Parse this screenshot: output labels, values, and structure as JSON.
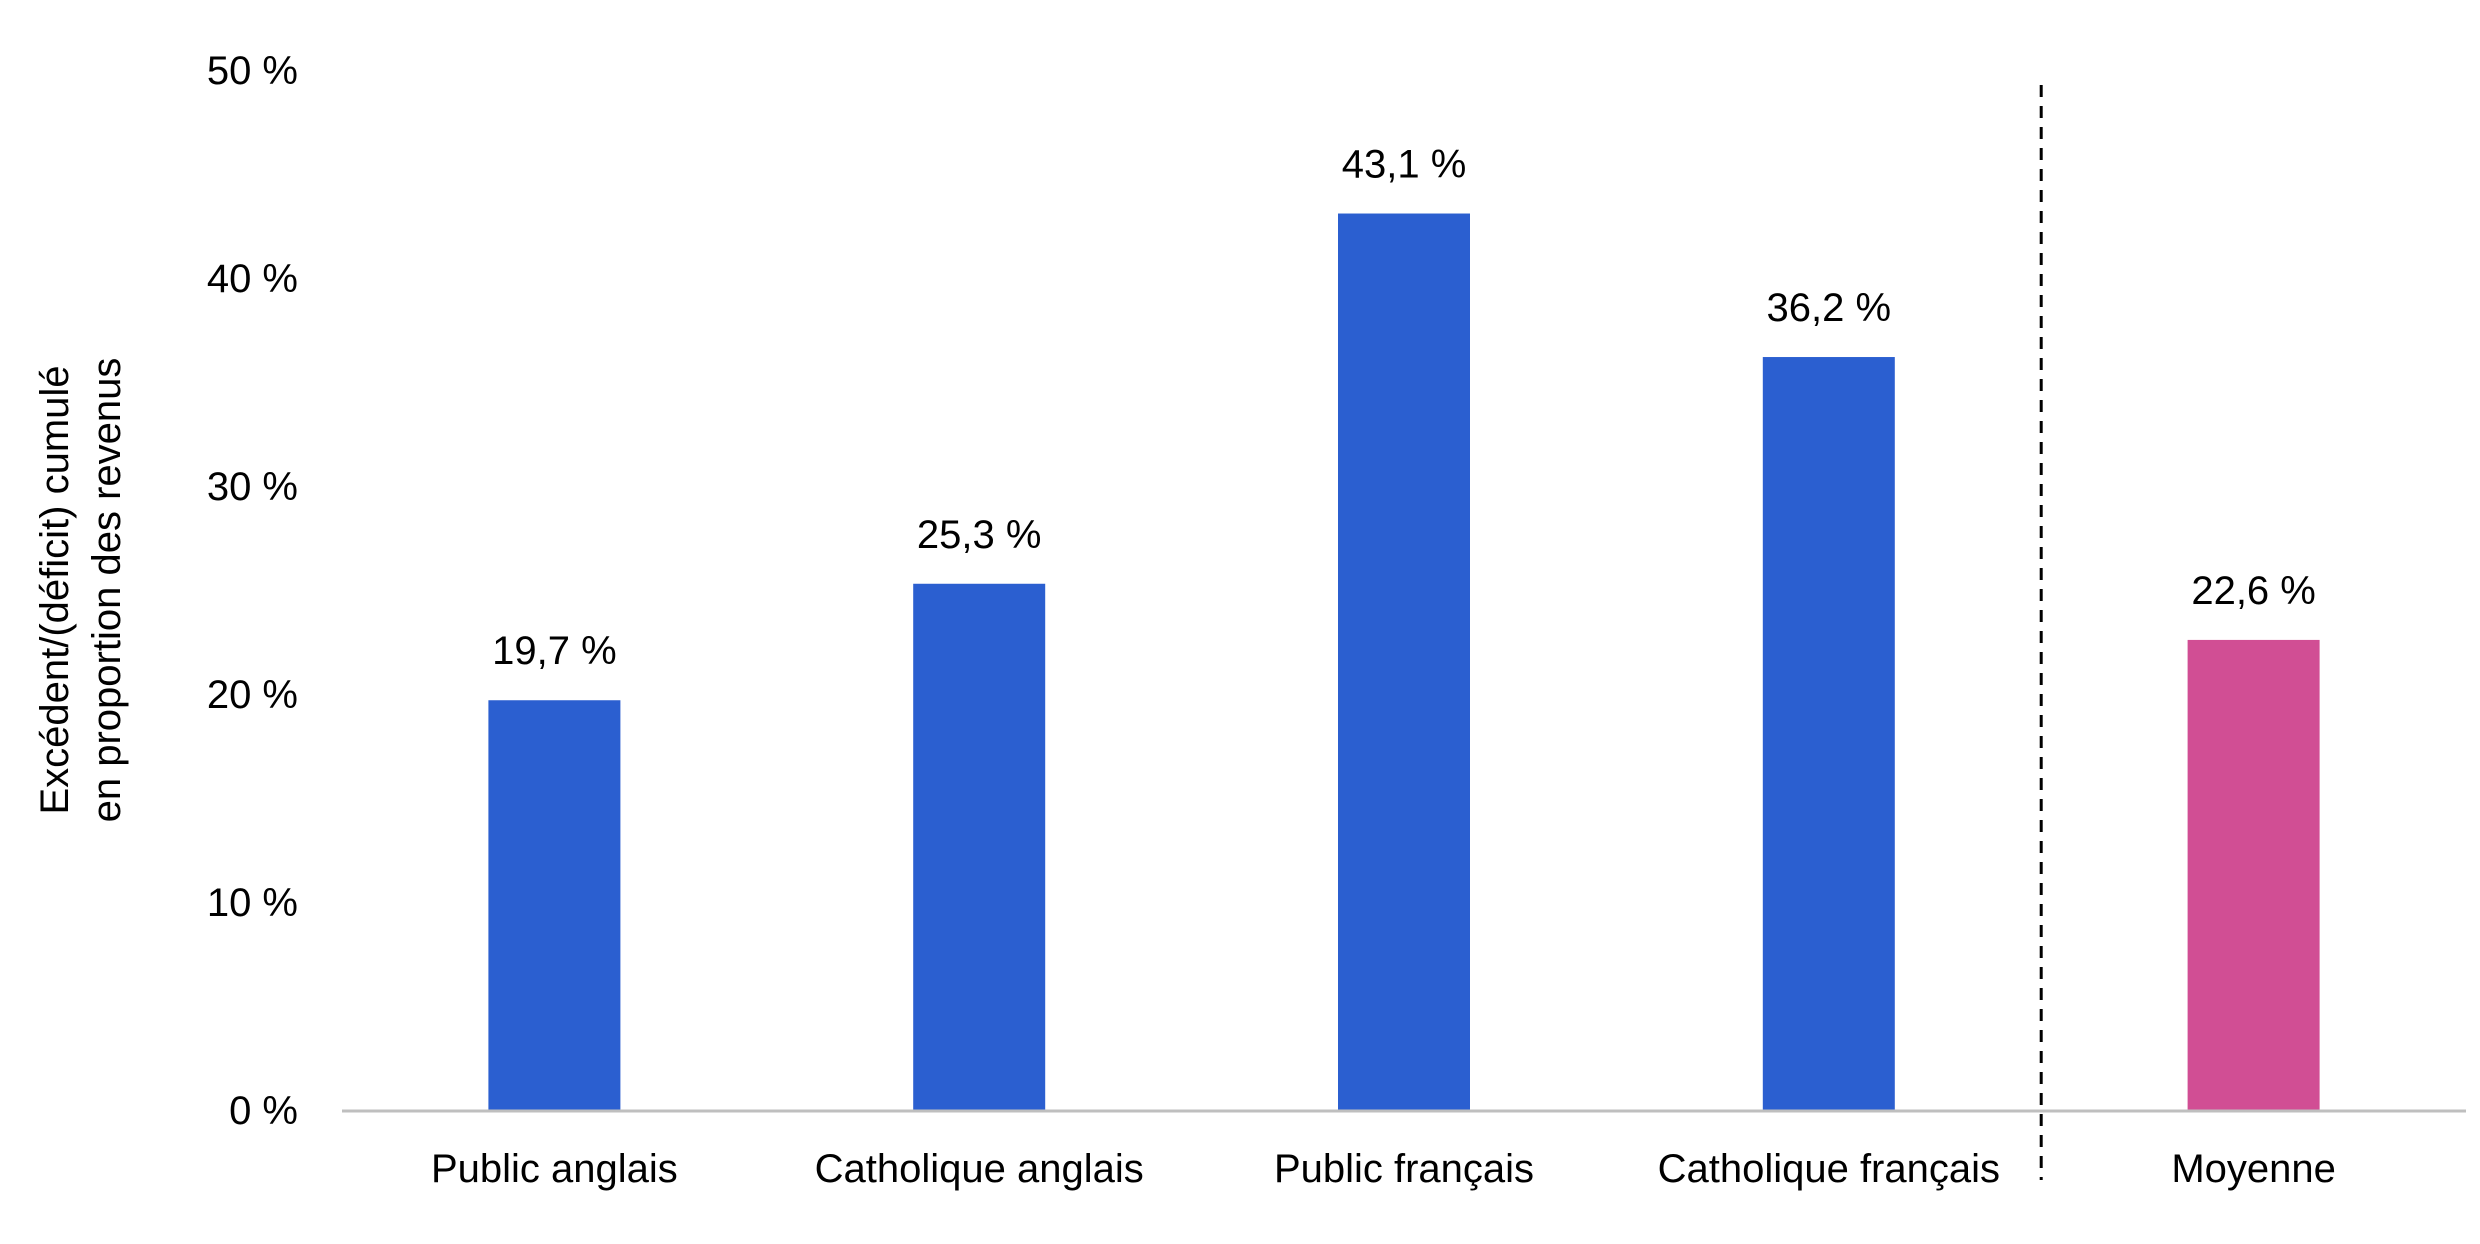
{
  "chart_data": {
    "type": "bar",
    "title": "",
    "xlabel": "",
    "ylabel_lines": [
      "Excédent/(déficit) cumulé",
      "en proportion des revenus"
    ],
    "ylim": [
      0,
      50
    ],
    "yticks": [
      0,
      10,
      20,
      30,
      40,
      50
    ],
    "ytick_labels": [
      "0 %",
      "10 %",
      "20 %",
      "30 %",
      "40 %",
      "50 %"
    ],
    "categories": [
      "Public anglais",
      "Catholique anglais",
      "Public français",
      "Catholique français",
      "Moyenne"
    ],
    "values": [
      19.7,
      25.3,
      43.1,
      36.2,
      22.6
    ],
    "value_labels": [
      "19,7 %",
      "25,3 %",
      "43,1 %",
      "36,2 %",
      "22,6 %"
    ],
    "bar_colors": [
      "#2B5FD0",
      "#2B5FD0",
      "#2B5FD0",
      "#2B5FD0",
      "#D14E94"
    ],
    "separator_before_category": "Moyenne",
    "grid": false,
    "legend": "none",
    "axis_color": "#BFBFBF"
  }
}
